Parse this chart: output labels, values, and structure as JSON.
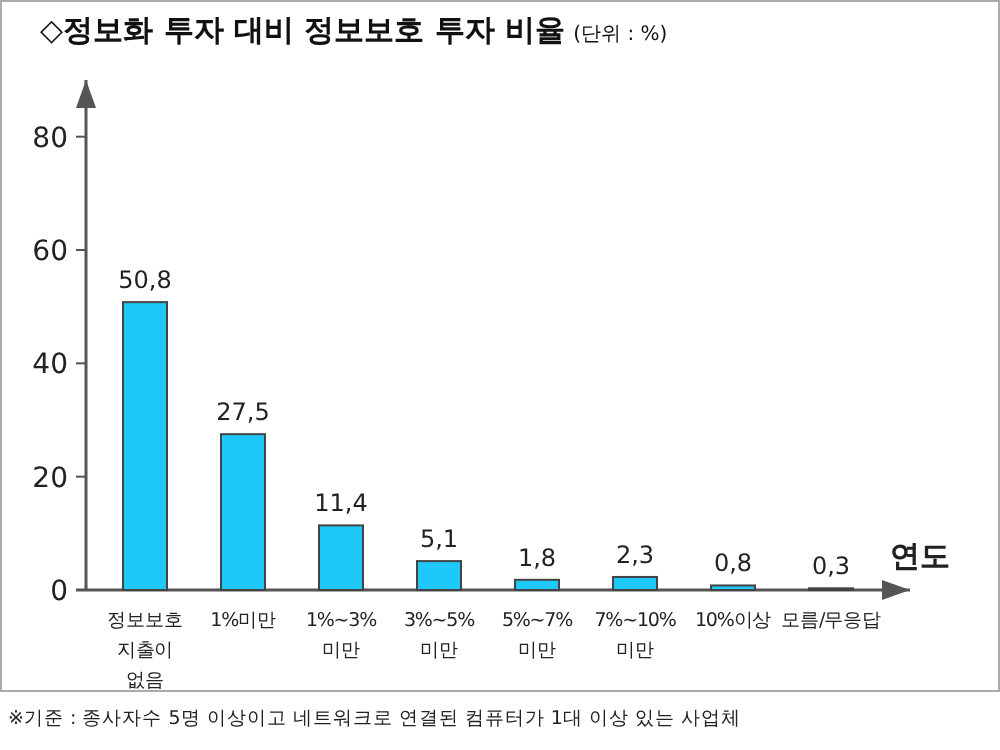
{
  "chart_data": {
    "type": "bar",
    "title": "◇정보화 투자 대비 정보보호 투자 비율",
    "subtitle": "(단위 : %)",
    "xlabel": "연도",
    "categories": [
      "정보보호\n지출이\n없음",
      "1%미만",
      "1%~3%\n미만",
      "3%~5%\n미만",
      "5%~7%\n미만",
      "7%~10%\n미만",
      "10%이상",
      "모름/무응답"
    ],
    "values": [
      50.8,
      27.5,
      11.4,
      5.1,
      1.8,
      2.3,
      0.8,
      0.3
    ],
    "value_labels": [
      "50,8",
      "27,5",
      "11,4",
      "5,1",
      "1,8",
      "2,3",
      "0,8",
      "0,3"
    ],
    "color": "#1ec8f8",
    "ylim": [
      0,
      90
    ],
    "yticks": [
      0,
      20,
      40,
      60,
      80
    ],
    "grid": false,
    "annotations": [
      "※기준 : 종사자수 5명 이상이고 네트워크로 연결된 컴퓨터가 1대 이상 있는 사업체"
    ]
  }
}
